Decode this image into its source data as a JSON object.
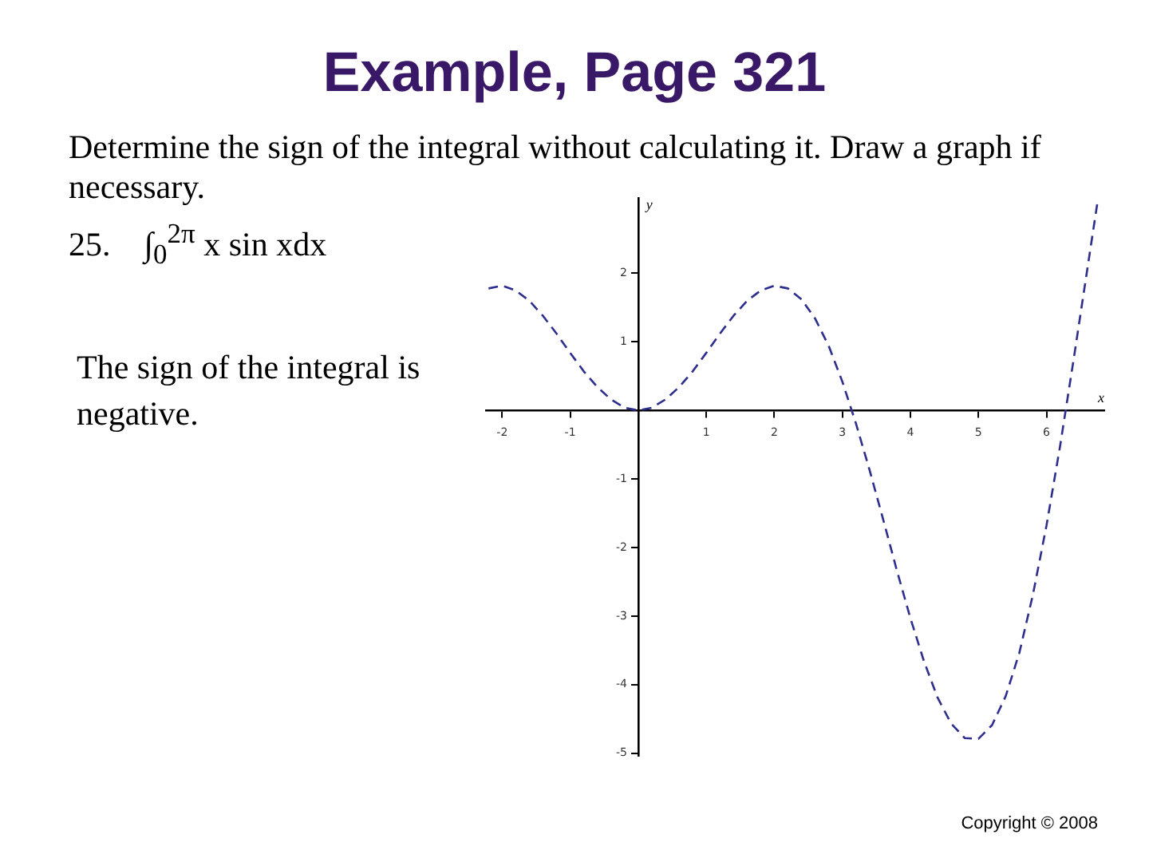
{
  "chart_data": {
    "type": "line",
    "title": "Example, Page 321",
    "annotations": [
      "Determine the sign of the integral without calculating it.  Draw a graph if necessary.",
      "25.    ∫$_{0}$$^{2π}$ x sin xdx",
      "The sign of the integral is negative.",
      "Copyright © 2008"
    ],
    "xlabel": "x",
    "ylabel": "y",
    "x": [
      -2.2,
      -2.0,
      -1.8,
      -1.6,
      -1.4,
      -1.2,
      -1.0,
      -0.8,
      -0.6,
      -0.4,
      -0.2,
      0,
      0.2,
      0.4,
      0.6,
      0.8,
      1.0,
      1.2,
      1.4,
      1.6,
      1.8,
      2.0,
      2.2,
      2.4,
      2.6,
      2.8,
      3.0,
      3.2,
      3.4,
      3.6,
      3.8,
      4.0,
      4.2,
      4.4,
      4.6,
      4.8,
      5.0,
      5.2,
      5.4,
      5.6,
      5.8,
      6.0,
      6.2,
      6.4,
      6.6,
      6.75
    ],
    "series": [
      {
        "color": "#2e2e8f",
        "values": [
          1.78,
          1.82,
          1.75,
          1.6,
          1.38,
          1.12,
          0.84,
          0.57,
          0.34,
          0.16,
          0.04,
          0,
          0.04,
          0.16,
          0.34,
          0.57,
          0.84,
          1.12,
          1.38,
          1.6,
          1.75,
          1.82,
          1.78,
          1.62,
          1.34,
          0.94,
          0.42,
          -0.19,
          -0.87,
          -1.59,
          -2.33,
          -3.03,
          -3.66,
          -4.19,
          -4.57,
          -4.78,
          -4.79,
          -4.59,
          -4.17,
          -3.54,
          -2.69,
          -1.68,
          -0.52,
          0.75,
          2.06,
          3.04
        ]
      }
    ],
    "xlim": [
      -2.25,
      6.85
    ],
    "ylim": [
      -5.05,
      3.1
    ],
    "xticks": [
      -2,
      -1,
      1,
      2,
      3,
      4,
      5,
      6
    ],
    "yticks": [
      -5,
      -4,
      -3,
      -2,
      -1,
      1,
      2
    ],
    "line_style": "dashed",
    "marker": "none"
  }
}
